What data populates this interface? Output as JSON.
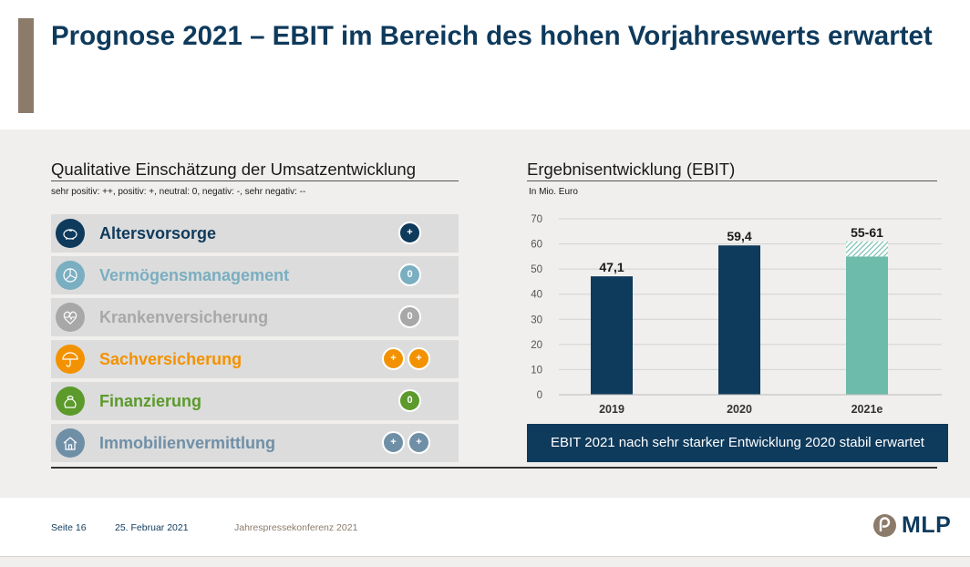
{
  "title": "Prognose 2021 – EBIT im Bereich des hohen Vorjahreswerts erwartet",
  "left": {
    "heading": "Qualitative Einschätzung der Umsatzentwicklung",
    "legend_note": "sehr positiv: ++, positiv: +, neutral: 0, negativ: -, sehr negativ: --",
    "rows": [
      {
        "label": "Altersvorsorge",
        "color": "#0e3a5c",
        "icon": "piggy-bank-icon",
        "badges": [
          "+"
        ]
      },
      {
        "label": "Vermögensmanagement",
        "color": "#7aaec1",
        "icon": "pie-chart-icon",
        "badges": [
          "0"
        ]
      },
      {
        "label": "Krankenversicherung",
        "color": "#a8a8a8",
        "icon": "heart-pulse-icon",
        "badges": [
          "0"
        ]
      },
      {
        "label": "Sachversicherung",
        "color": "#f39200",
        "icon": "umbrella-icon",
        "badges": [
          "+",
          "+"
        ]
      },
      {
        "label": "Finanzierung",
        "color": "#5b9a2b",
        "icon": "money-bag-icon",
        "badges": [
          "0"
        ]
      },
      {
        "label": "Immobilienvermittlung",
        "color": "#6f8fa6",
        "icon": "house-icon",
        "badges": [
          "+",
          "+"
        ]
      }
    ]
  },
  "right": {
    "heading": "Ergebnisentwicklung (EBIT)",
    "unit_note": "In Mio. Euro",
    "summary": "EBIT 2021 nach sehr starker Entwicklung 2020 stabil erwartet"
  },
  "chart_data": {
    "type": "bar",
    "title": "Ergebnisentwicklung (EBIT)",
    "ylabel": "In Mio. Euro",
    "categories": [
      "2019",
      "2020",
      "2021e"
    ],
    "values": [
      47.1,
      59.4,
      55
    ],
    "range_high": [
      null,
      null,
      61
    ],
    "data_labels": [
      "47,1",
      "59,4",
      "55-61"
    ],
    "colors": [
      "#0e3a5c",
      "#0e3a5c",
      "#6dbbaa"
    ],
    "ylim": [
      0,
      70
    ],
    "yticks": [
      0,
      10,
      20,
      30,
      40,
      50,
      60,
      70
    ],
    "grid": true
  },
  "footer": {
    "page": "Seite 16",
    "date": "25. Februar 2021",
    "event": "Jahrespressekonferenz 2021",
    "logo_text": "MLP"
  }
}
